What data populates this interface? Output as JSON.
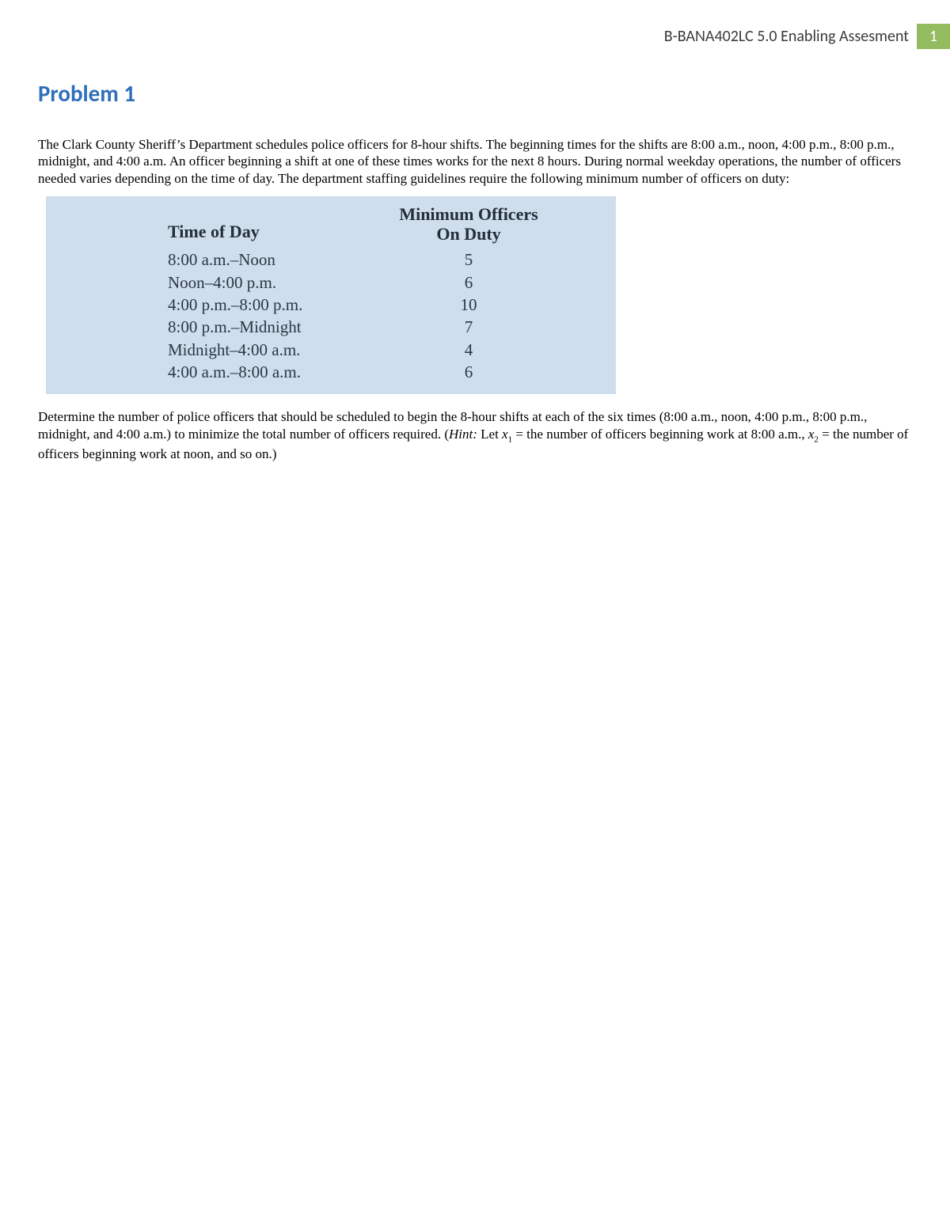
{
  "header": {
    "course_label": "B-BANA402LC 5.0 Enabling Assesment",
    "page_number": "1",
    "header_bg": "#94bb60",
    "header_text_color": "#3a3a3a"
  },
  "problem": {
    "title": "Problem 1",
    "title_color": "#2f6fba",
    "intro": "The Clark County Sheriff’s Department schedules police officers for 8-hour shifts. The beginning times for the shifts are 8:00 a.m., noon, 4:00 p.m., 8:00 p.m., midnight, and 4:00 a.m. An officer beginning a shift at one of these times works for the next 8 hours. During normal weekday operations, the number of officers needed varies depending on the time of day. The department staffing guidelines require the following minimum number of officers on duty:",
    "question_part1": "Determine the number of police officers that should be scheduled to begin the 8-hour shifts at each of the six times (8:00 a.m., noon, 4:00 p.m., 8:00 p.m., midnight, and 4:00 a.m.) to minimize the total number of officers required. (",
    "hint_label": "Hint:",
    "hint_text_1": " Let ",
    "var1": "x",
    "sub1": "1",
    "hint_text_2": " = the number of officers beginning work at 8:00 a.m., ",
    "var2": "x",
    "sub2": "2",
    "hint_text_3": " = the number of officers beginning work at noon, and so on.)"
  },
  "staffing_table": {
    "type": "table",
    "background_color": "#cfdeed",
    "text_color": "#2a3644",
    "header_fontsize": 22,
    "row_fontsize": 21,
    "columns": [
      "Time of Day",
      "Minimum Officers On Duty"
    ],
    "header_right_line1": "Minimum Officers",
    "header_right_line2": "On Duty",
    "rows": [
      {
        "time": "8:00 a.m.–Noon",
        "min": "5"
      },
      {
        "time": "Noon–4:00 p.m.",
        "min": "6"
      },
      {
        "time": "4:00 p.m.–8:00 p.m.",
        "min": "10"
      },
      {
        "time": "8:00 p.m.–Midnight",
        "min": "7"
      },
      {
        "time": "Midnight–4:00 a.m.",
        "min": "4"
      },
      {
        "time": "4:00 a.m.–8:00 a.m.",
        "min": "6"
      }
    ]
  }
}
